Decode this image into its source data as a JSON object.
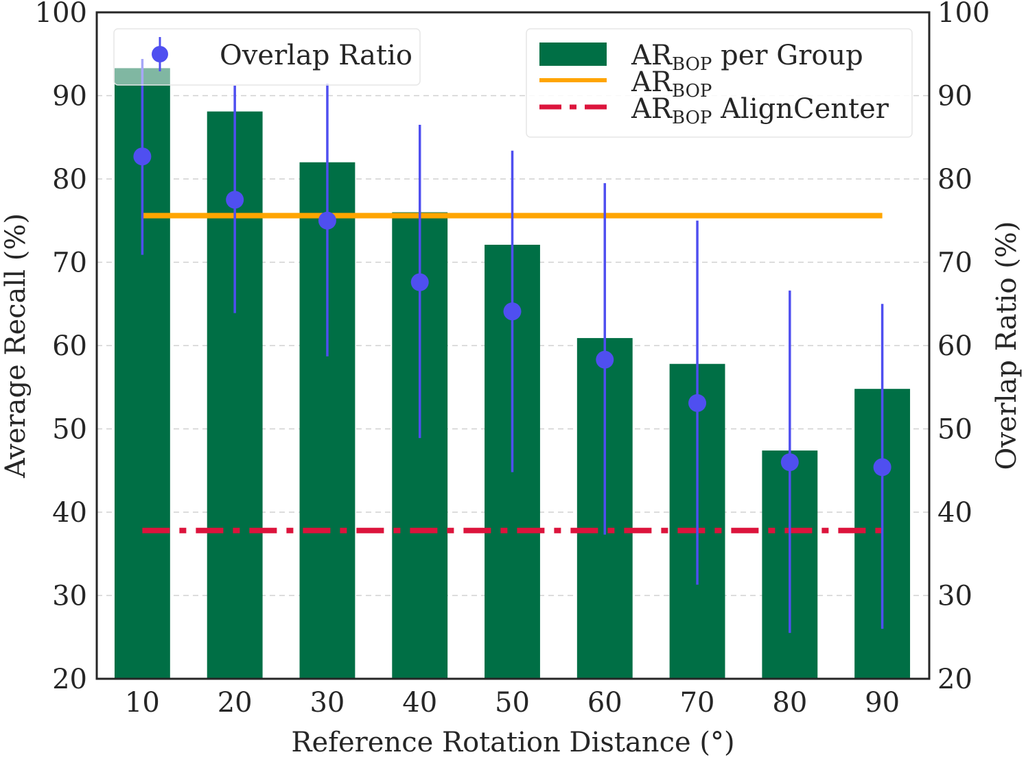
{
  "colors": {
    "bars": "#006f45",
    "overlap": "#4f4ff0",
    "ar_bop": "#ffa500",
    "align_center": "#dc143c",
    "axes": "#262626",
    "grid": "#d0d0d0",
    "background": "#ffffff"
  },
  "legend_left": {
    "overlap_label": "Overlap Ratio"
  },
  "legend_right": {
    "bars": {
      "main": "AR",
      "sub": "BOP",
      "rest": " per Group"
    },
    "ar_bop": {
      "main": "AR",
      "sub": "BOP",
      "rest": ""
    },
    "align_center": {
      "main": "AR",
      "sub": "BOP",
      "rest": " AlignCenter"
    }
  },
  "chart_data": {
    "type": "bar",
    "title": "",
    "xlabel": "Reference Rotation Distance (°)",
    "ylabel": "Average Recall (%)",
    "ylabel_right": "Overlap Ratio (%)",
    "categories": [
      "10",
      "20",
      "30",
      "40",
      "50",
      "60",
      "70",
      "80",
      "90"
    ],
    "ylim": [
      20,
      100
    ],
    "ylim_right": [
      20,
      100
    ],
    "yticks": [
      20,
      30,
      40,
      50,
      60,
      70,
      80,
      90,
      100
    ],
    "grid": "horizontal dashed",
    "legend_placement": [
      "top-left",
      "top-right"
    ],
    "series": [
      {
        "name": "AR_BOP per Group",
        "kind": "bar",
        "axis": "left",
        "values": [
          93.3,
          88.1,
          82.0,
          76.0,
          72.1,
          60.9,
          57.8,
          47.4,
          54.8
        ]
      },
      {
        "name": "Overlap Ratio",
        "kind": "errorbar",
        "axis": "right",
        "values": [
          82.7,
          77.5,
          75.0,
          67.6,
          64.1,
          58.3,
          53.1,
          46.0,
          45.4
        ],
        "lower": [
          70.9,
          63.9,
          58.7,
          48.9,
          44.8,
          37.3,
          31.3,
          25.5,
          26.0
        ],
        "upper": [
          94.4,
          91.2,
          91.4,
          86.5,
          83.4,
          79.5,
          75.0,
          66.6,
          65.0
        ]
      },
      {
        "name": "AR_BOP",
        "kind": "hline",
        "axis": "left",
        "value": 75.6
      },
      {
        "name": "AR_BOP AlignCenter",
        "kind": "hline-dashdot",
        "axis": "left",
        "value": 37.8
      }
    ]
  }
}
